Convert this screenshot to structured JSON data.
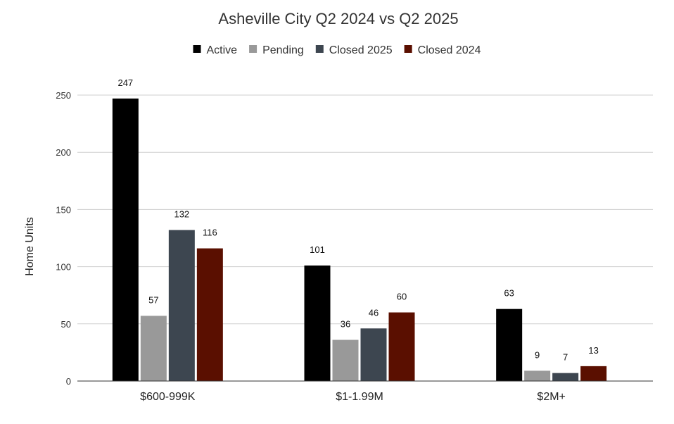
{
  "chart_data": {
    "type": "bar",
    "title": "Asheville City Q2 2024 vs Q2 2025",
    "xlabel": "",
    "ylabel": "Home Units",
    "ylim": [
      0,
      250
    ],
    "yticks": [
      0,
      50,
      100,
      150,
      200,
      250
    ],
    "categories": [
      "$600-999K",
      "$1-1.99M",
      "$2M+"
    ],
    "legend_position": "top",
    "series": [
      {
        "name": "Active",
        "color": "#000000",
        "values": [
          247,
          101,
          63
        ]
      },
      {
        "name": "Pending",
        "color": "#999999",
        "values": [
          57,
          36,
          9
        ]
      },
      {
        "name": "Closed 2025",
        "color": "#3d4650",
        "values": [
          132,
          46,
          7
        ]
      },
      {
        "name": "Closed 2024",
        "color": "#5a0f00",
        "values": [
          116,
          60,
          13
        ]
      }
    ]
  }
}
